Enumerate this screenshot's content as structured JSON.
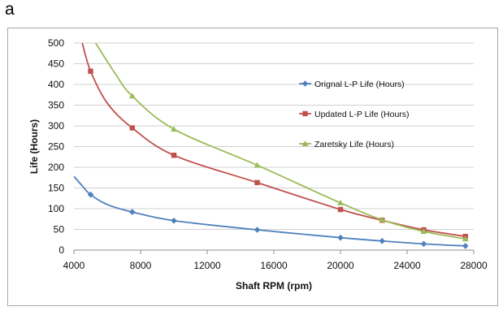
{
  "panel_label": "a",
  "chart_data": {
    "type": "line",
    "title": "",
    "xlabel": "Shaft RPM (rpm)",
    "ylabel": "Life (Hours)",
    "xlim": [
      4000,
      28000
    ],
    "ylim": [
      0,
      500
    ],
    "xticks": [
      4000,
      8000,
      12000,
      16000,
      20000,
      24000,
      28000
    ],
    "yticks": [
      0,
      50,
      100,
      150,
      200,
      250,
      300,
      350,
      400,
      450,
      500
    ],
    "grid": "horizontal",
    "legend_position": "right",
    "series": [
      {
        "name": "Orignal L-P Life (Hours)",
        "color": "#4f81bd",
        "marker": "diamond",
        "points": [
          [
            5000,
            134
          ],
          [
            7500,
            92
          ],
          [
            10000,
            71
          ],
          [
            15000,
            49
          ],
          [
            20000,
            30
          ],
          [
            22500,
            22
          ],
          [
            25000,
            15
          ],
          [
            27500,
            10
          ]
        ],
        "curve": [
          [
            4000,
            178
          ],
          [
            4500,
            155
          ],
          [
            5000,
            134
          ],
          [
            6000,
            110
          ],
          [
            7500,
            92
          ],
          [
            10000,
            71
          ],
          [
            15000,
            49
          ],
          [
            20000,
            30
          ],
          [
            22500,
            22
          ],
          [
            25000,
            15
          ],
          [
            27500,
            10
          ]
        ]
      },
      {
        "name": "Updated L-P Life (Hours)",
        "color": "#c0504d",
        "marker": "square",
        "points": [
          [
            5000,
            432
          ],
          [
            7500,
            295
          ],
          [
            10000,
            229
          ],
          [
            15000,
            163
          ],
          [
            20000,
            98
          ],
          [
            22500,
            72
          ],
          [
            25000,
            49
          ],
          [
            27500,
            33
          ]
        ],
        "curve": [
          [
            4500,
            500
          ],
          [
            5000,
            432
          ],
          [
            6000,
            355
          ],
          [
            7500,
            295
          ],
          [
            10000,
            229
          ],
          [
            15000,
            163
          ],
          [
            20000,
            98
          ],
          [
            22500,
            72
          ],
          [
            25000,
            49
          ],
          [
            27500,
            33
          ]
        ]
      },
      {
        "name": "Zaretsky Life (Hours)",
        "color": "#9bbb59",
        "marker": "triangle",
        "points": [
          [
            7500,
            372
          ],
          [
            10000,
            292
          ],
          [
            15000,
            205
          ],
          [
            20000,
            114
          ],
          [
            22500,
            73
          ],
          [
            25000,
            45
          ],
          [
            27500,
            27
          ]
        ],
        "curve": [
          [
            5300,
            500
          ],
          [
            6500,
            425
          ],
          [
            7500,
            372
          ],
          [
            10000,
            292
          ],
          [
            15000,
            205
          ],
          [
            20000,
            114
          ],
          [
            22500,
            73
          ],
          [
            25000,
            45
          ],
          [
            27500,
            27
          ]
        ]
      }
    ]
  }
}
